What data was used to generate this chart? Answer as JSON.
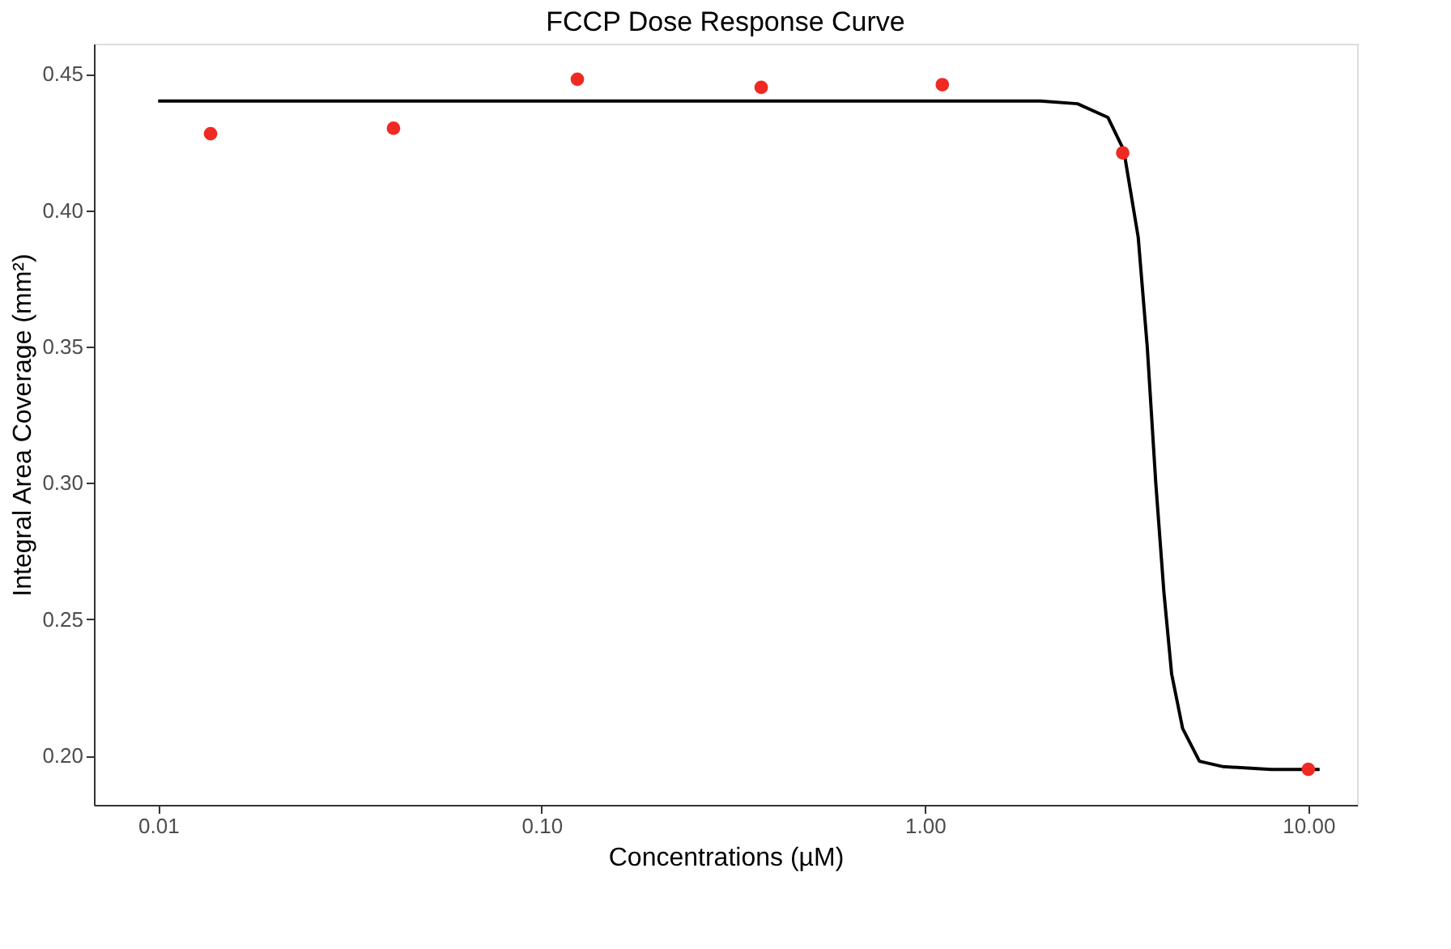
{
  "chart_data": {
    "type": "scatter",
    "title": "FCCP Dose Response Curve",
    "xlabel": "Concentrations (µM)",
    "ylabel": "Integral Area Coverage (mm²)",
    "log": "x",
    "grid": false,
    "marker": "circle",
    "xlim": [
      0.0068,
      13.4
    ],
    "ylim": [
      0.182,
      0.461
    ],
    "xticks": [
      {
        "value": 0.01,
        "label": "0.01"
      },
      {
        "value": 0.1,
        "label": "0.10"
      },
      {
        "value": 1,
        "label": "1.00"
      },
      {
        "value": 10,
        "label": "10.00"
      }
    ],
    "yticks": [
      {
        "value": 0.2,
        "label": "0.20"
      },
      {
        "value": 0.25,
        "label": "0.25"
      },
      {
        "value": 0.3,
        "label": "0.30"
      },
      {
        "value": 0.35,
        "label": "0.35"
      },
      {
        "value": 0.4,
        "label": "0.40"
      },
      {
        "value": 0.45,
        "label": "0.45"
      }
    ],
    "series": [
      {
        "type": "line",
        "color": "#000000",
        "line_style": "solid",
        "marker": "none",
        "x": [
          0.01,
          0.1,
          1.0,
          2.0,
          2.5,
          3.0,
          3.3,
          3.6,
          3.8,
          4.0,
          4.2,
          4.4,
          4.7,
          5.2,
          6.0,
          8.0,
          10.7
        ],
        "values": [
          0.44,
          0.44,
          0.44,
          0.44,
          0.439,
          0.434,
          0.422,
          0.39,
          0.35,
          0.3,
          0.26,
          0.23,
          0.21,
          0.198,
          0.196,
          0.195,
          0.195
        ]
      },
      {
        "color": "#f02a23",
        "x": [
          0.0137,
          0.0411,
          0.124,
          0.374,
          1.11,
          3.28,
          10.0
        ],
        "values": [
          0.428,
          0.43,
          0.448,
          0.445,
          0.446,
          0.421,
          0.195
        ]
      }
    ]
  }
}
